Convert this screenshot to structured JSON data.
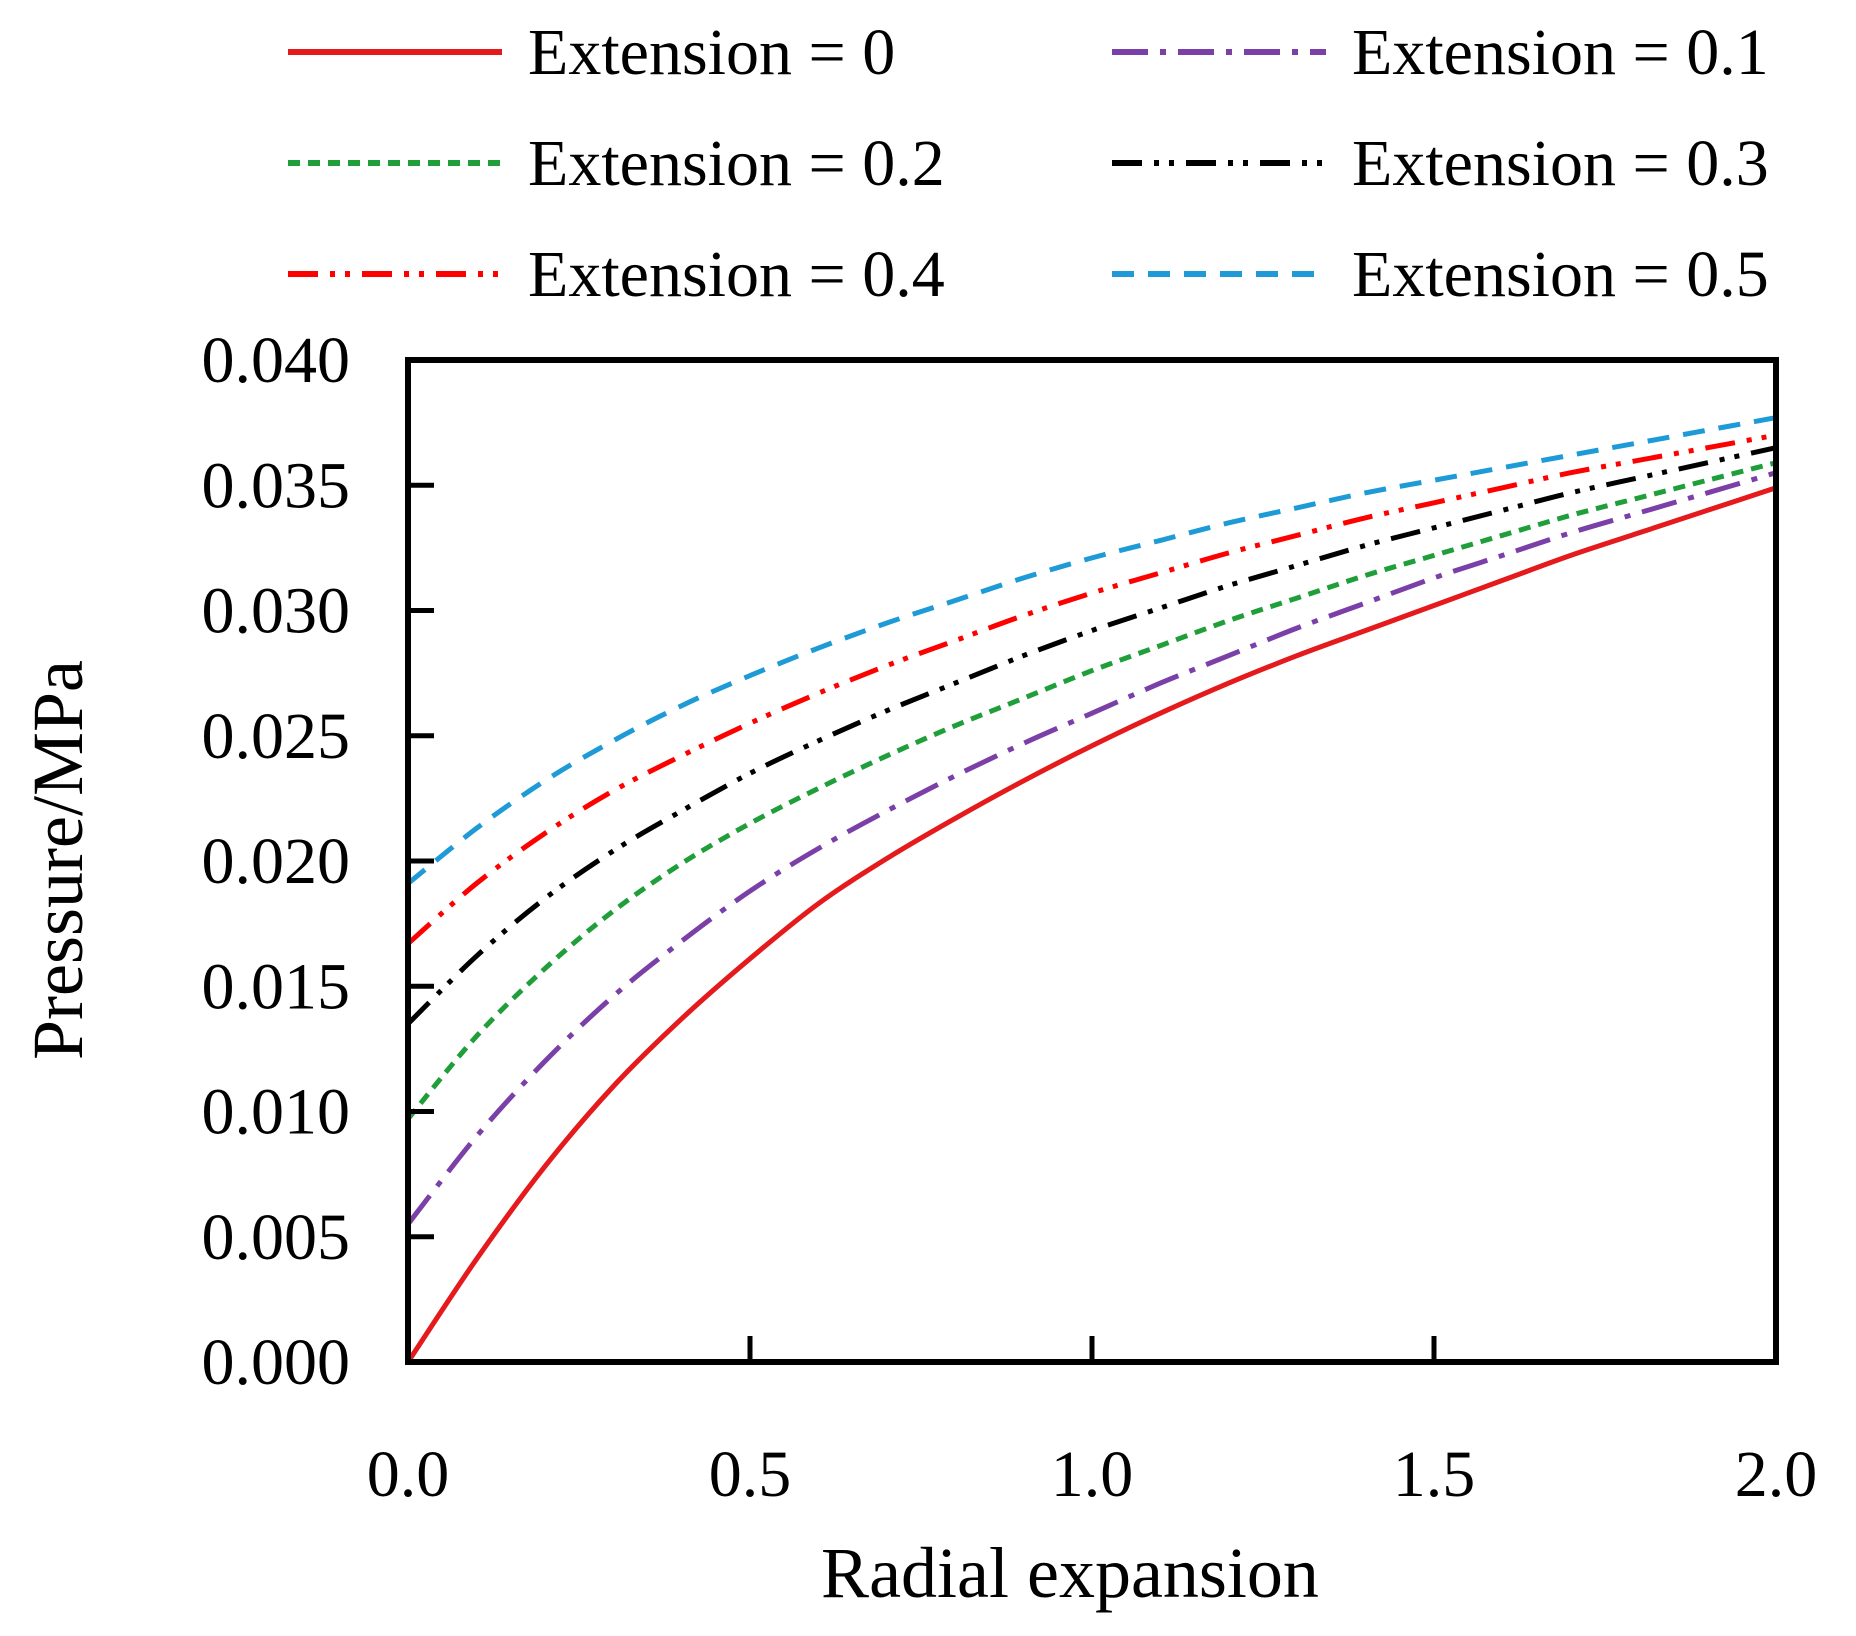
{
  "chart_data": {
    "type": "line",
    "title": "",
    "xlabel": "Radial expansion",
    "ylabel": "Pressure/MPa",
    "xlim": [
      0.0,
      2.0
    ],
    "ylim": [
      0.0,
      0.04
    ],
    "grid": false,
    "legend_position": "top",
    "x_ticks": [
      "0.0",
      "0.5",
      "1.0",
      "1.5",
      "2.0"
    ],
    "y_ticks": [
      "0.000",
      "0.005",
      "0.010",
      "0.015",
      "0.020",
      "0.025",
      "0.030",
      "0.035",
      "0.040"
    ],
    "x": [
      0.0,
      0.1,
      0.2,
      0.3,
      0.4,
      0.5,
      0.6,
      0.7,
      0.8,
      0.9,
      1.0,
      1.1,
      1.2,
      1.3,
      1.4,
      1.5,
      1.6,
      1.7,
      1.8,
      1.9,
      2.0
    ],
    "series": [
      {
        "name": "Extension = 0",
        "color": "#e41a1c",
        "dash": "solid",
        "values": [
          0.0,
          0.0041,
          0.0078,
          0.011,
          0.0137,
          0.0161,
          0.0183,
          0.0201,
          0.0217,
          0.0232,
          0.0246,
          0.0259,
          0.0271,
          0.0282,
          0.0292,
          0.0302,
          0.0312,
          0.0322,
          0.0331,
          0.034,
          0.0349
        ]
      },
      {
        "name": "Extension = 0.1",
        "color": "#7b3fa8",
        "dash": "dash-dot",
        "values": [
          0.0055,
          0.009,
          0.012,
          0.0146,
          0.0168,
          0.0188,
          0.0205,
          0.022,
          0.0234,
          0.0247,
          0.0259,
          0.0271,
          0.0282,
          0.0293,
          0.0303,
          0.0313,
          0.0322,
          0.0331,
          0.0339,
          0.0347,
          0.0355
        ]
      },
      {
        "name": "Extension = 0.2",
        "color": "#1f9e3a",
        "dash": "short-dash",
        "values": [
          0.0097,
          0.013,
          0.0157,
          0.018,
          0.0199,
          0.0215,
          0.0229,
          0.0242,
          0.0254,
          0.0265,
          0.0276,
          0.0286,
          0.0296,
          0.0305,
          0.0314,
          0.0322,
          0.033,
          0.0338,
          0.0345,
          0.0352,
          0.0359
        ]
      },
      {
        "name": "Extension = 0.3",
        "color": "#000000",
        "dash": "dash-dot-dot",
        "values": [
          0.0135,
          0.0162,
          0.0185,
          0.0204,
          0.022,
          0.0235,
          0.0248,
          0.026,
          0.0271,
          0.0282,
          0.0292,
          0.0301,
          0.031,
          0.0318,
          0.0326,
          0.0333,
          0.034,
          0.0347,
          0.0353,
          0.0359,
          0.0365
        ]
      },
      {
        "name": "Extension = 0.4",
        "color": "#ff0000",
        "dash": "dash-dot-dot",
        "values": [
          0.0167,
          0.0191,
          0.0211,
          0.0228,
          0.0242,
          0.0255,
          0.0267,
          0.0278,
          0.0288,
          0.0298,
          0.0307,
          0.0315,
          0.0323,
          0.033,
          0.0337,
          0.0343,
          0.0349,
          0.0355,
          0.036,
          0.0365,
          0.037
        ]
      },
      {
        "name": "Extension = 0.5",
        "color": "#1e9bd7",
        "dash": "long-dash",
        "values": [
          0.0191,
          0.0213,
          0.0232,
          0.0248,
          0.0262,
          0.0274,
          0.0285,
          0.0295,
          0.0304,
          0.0313,
          0.0321,
          0.0328,
          0.0335,
          0.0341,
          0.0347,
          0.0352,
          0.0357,
          0.0362,
          0.0367,
          0.0372,
          0.0377
        ]
      }
    ]
  }
}
